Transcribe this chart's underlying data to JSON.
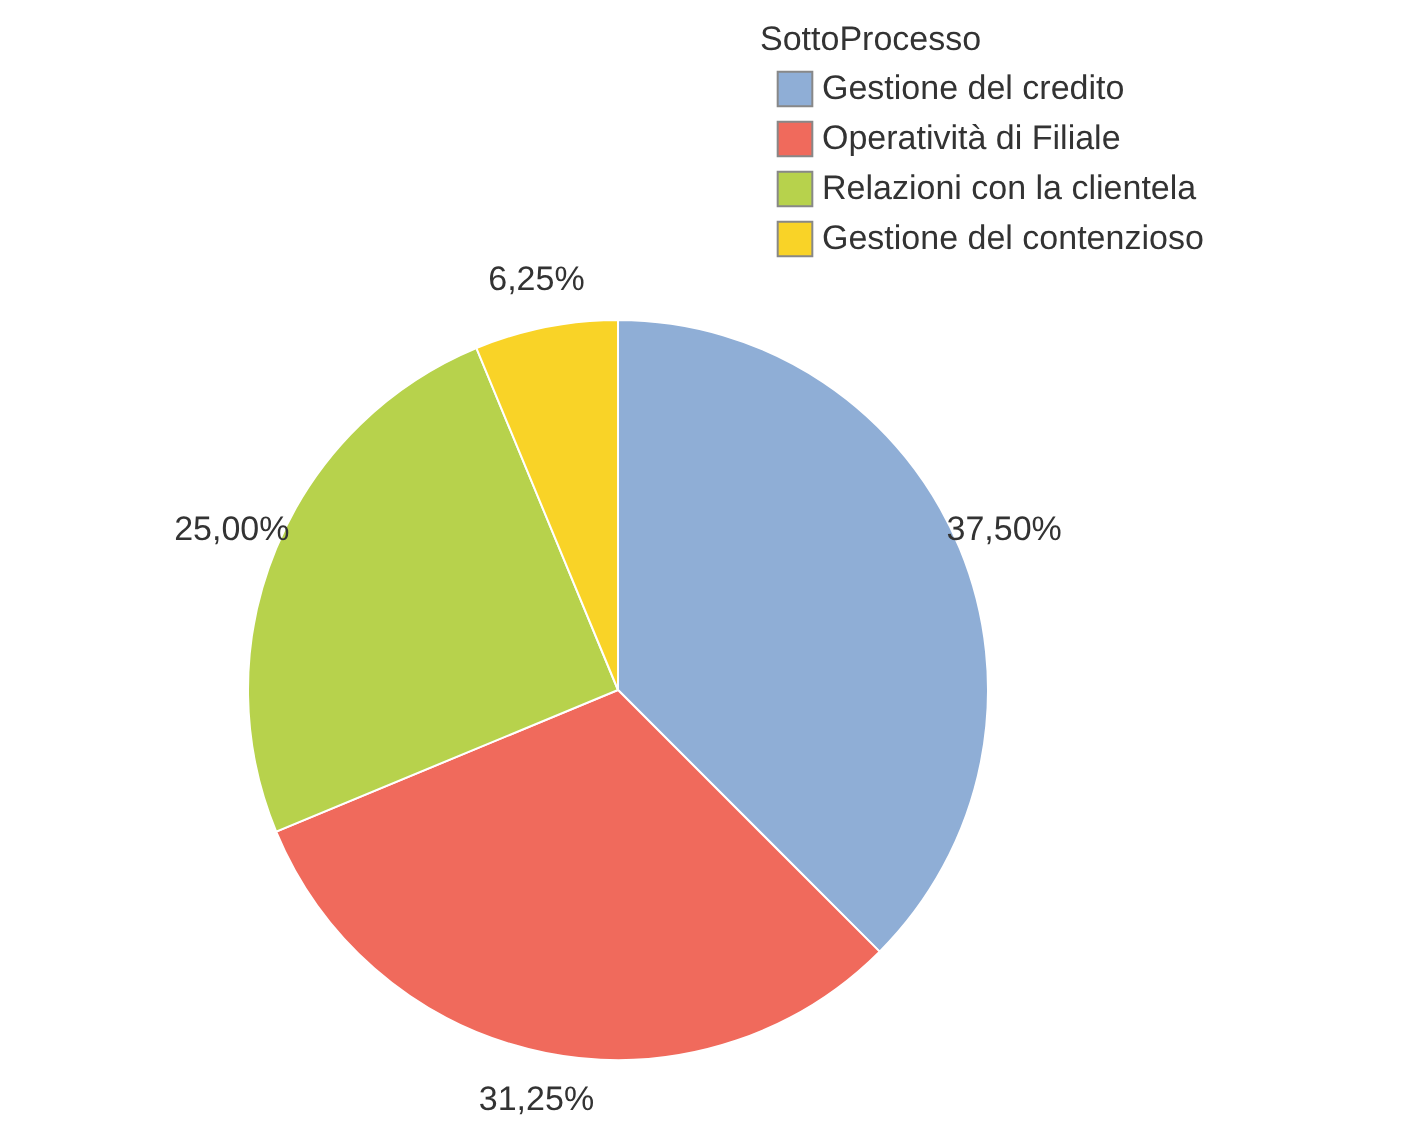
{
  "chart_data": {
    "type": "pie",
    "legend_title": "SottoProcesso",
    "legend": "top right",
    "categories": [
      "Gestione del credito",
      "Operatività di Filiale",
      "Relazioni con la clientela",
      "Gestione del contenzioso"
    ],
    "values": [
      37.5,
      31.25,
      25,
      6.25
    ],
    "value_labels": [
      "37,50%",
      "31,25%",
      "25,00%",
      "6,25%"
    ],
    "colors": [
      "#8faed6",
      "#f06a5c",
      "#b7d24c",
      "#f9d327"
    ]
  }
}
